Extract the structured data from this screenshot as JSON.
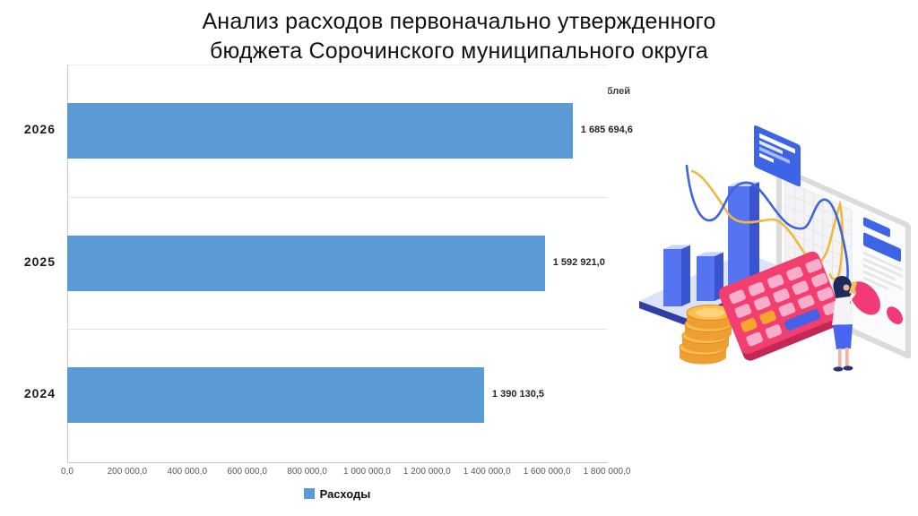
{
  "title": {
    "line1": "Анализ расходов первоначально утвержденного",
    "line2": "бюджета Сорочинского муниципального округа"
  },
  "chart_data": {
    "type": "bar",
    "orientation": "horizontal",
    "title": "Анализ расходов первоначально утвержденного бюджета Сорочинского муниципального округа",
    "categories": [
      "2026",
      "2025",
      "2024"
    ],
    "values": [
      1685694.6,
      1592921.0,
      1390130.5
    ],
    "value_labels": [
      "1 685 694,6",
      "1 592 921,0",
      "1 390 130,5"
    ],
    "series_name": "Расходы",
    "unit_label": "тыс. рублей",
    "xlim": [
      0,
      1800000
    ],
    "x_tick_labels": [
      "0,0",
      "200 000,0",
      "400 000,0",
      "600 000,0",
      "800 000,0",
      "1 000 000,0",
      "1 200 000,0",
      "1 400 000,0",
      "1 600 000,0",
      "1 800 000,0"
    ],
    "grid": "horizontal category separators only",
    "legend_position": "bottom",
    "bar_color": "#5B9BD5"
  },
  "legend": {
    "label": "Расходы",
    "marker_color": "#5B9BD5"
  },
  "illustration": {
    "description": "isometric finance analytics clipart",
    "parts": [
      "dashboard-board-icon",
      "chart-card-icon",
      "bar-chart-3d-icon",
      "line-curves-icon",
      "coins-stack-icon",
      "calculator-icon",
      "analyst-woman-icon",
      "pie-dots-icon"
    ],
    "colors": {
      "blue": "#4765EE",
      "dark_blue": "#2E3DA8",
      "navy": "#1D2A5C",
      "pink": "#F33F70",
      "light_pink": "#F9AFCB",
      "yellow": "#F0A233",
      "curve_yellow": "#EFB93F",
      "curve_blue": "#3F63D9",
      "board_gray": "#DBDBDB"
    }
  }
}
